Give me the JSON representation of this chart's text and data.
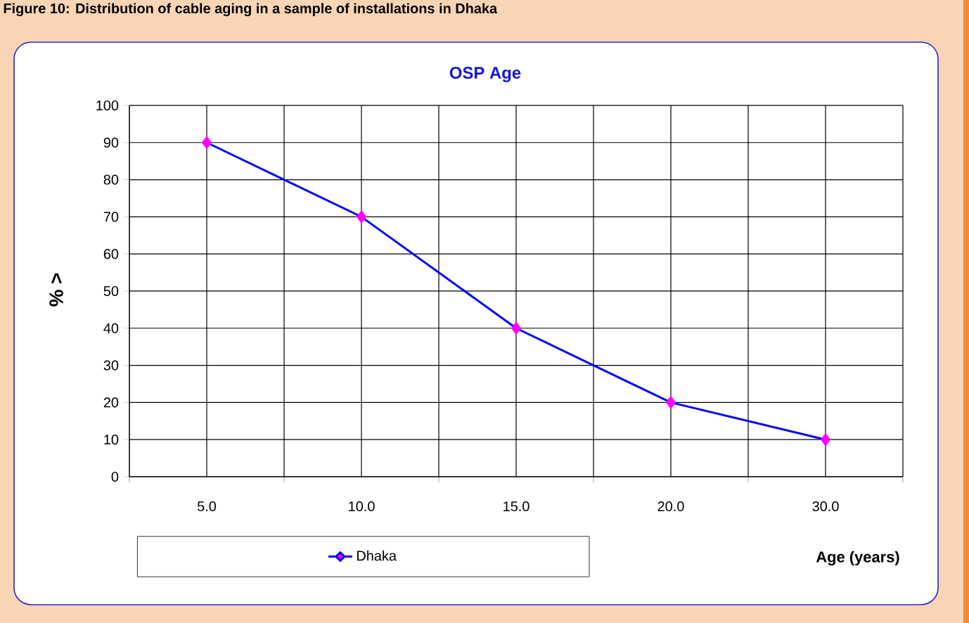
{
  "chart_data": {
    "type": "line",
    "title": "OSP Age",
    "annotations": [
      "Figure 10: Distribution of cable aging in a sample of installations in Dhaka"
    ],
    "xlabel": "Age (years)",
    "ylabel": "% >",
    "categories": [
      "5.0",
      "10.0",
      "15.0",
      "20.0",
      "30.0"
    ],
    "series": [
      {
        "name": "Dhaka",
        "color": "#0000ff",
        "colors": [
          "#ff00ff",
          "#ff00ff",
          "#ff00ff",
          "#ff00ff",
          "#ff00ff"
        ],
        "values": [
          90,
          70,
          40,
          20,
          10
        ]
      }
    ],
    "ylim": [
      0,
      100
    ],
    "yticks": [
      0,
      10,
      20,
      30,
      40,
      50,
      60,
      70,
      80,
      90,
      100
    ],
    "grid": true,
    "legend": "bottom",
    "marker": "diamond",
    "line_style": "solid"
  }
}
